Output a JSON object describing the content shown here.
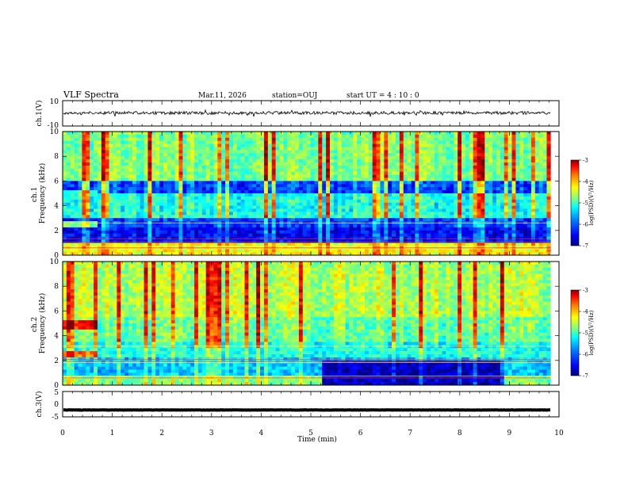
{
  "header": {
    "title": "VLF Spectra",
    "date": "Mar.11, 2026",
    "station": "station=OUJ",
    "start": "start UT =  4 : 10 : 0"
  },
  "colors": {
    "colormap": [
      "#00007f",
      "#0000ff",
      "#007fff",
      "#00ffff",
      "#7fff7f",
      "#ffff00",
      "#ff7f00",
      "#ff0000",
      "#7f0000"
    ]
  },
  "chart_data": [
    {
      "id": "ch1-waveform",
      "type": "line",
      "ylabel": "ch.1(V)",
      "ylim": [
        -10,
        10
      ],
      "yticks": [
        "10",
        "-10"
      ],
      "xlim": [
        0,
        10
      ],
      "x_extent": [
        0,
        9.83
      ],
      "baseline": 0.3,
      "amplitude": 1.2
    },
    {
      "id": "ch1-spectrogram",
      "type": "heatmap",
      "ylabel": "ch.1\nFrequency (kHz)",
      "ylim": [
        0,
        10
      ],
      "yticks": [
        "0",
        "2",
        "4",
        "6",
        "8",
        "10"
      ],
      "xlim": [
        0,
        10
      ],
      "x_extent": [
        0,
        9.83
      ],
      "colorbar": {
        "label": "log(PSD)(V²/Hz)",
        "range": [
          -7,
          -3
        ],
        "ticks": [
          "-3",
          "-4",
          "-5",
          "-6",
          "-7"
        ]
      },
      "bands_khz": [
        {
          "from": 0,
          "to": 0.9,
          "level": 0.62
        },
        {
          "from": 0.9,
          "to": 2.2,
          "level": 0.12
        },
        {
          "from": 2.2,
          "to": 2.9,
          "level": 0.18
        },
        {
          "from": 2.9,
          "to": 3.6,
          "level": 0.42
        },
        {
          "from": 3.6,
          "to": 5.0,
          "level": 0.4
        },
        {
          "from": 5.0,
          "to": 6.0,
          "level": 0.2
        },
        {
          "from": 6.0,
          "to": 10,
          "level": 0.5
        }
      ],
      "early_bright_bands_khz": [
        {
          "from": 2.3,
          "to": 2.8,
          "level": 0.5,
          "until_min": 0.7
        },
        {
          "from": 4.7,
          "to": 5.3,
          "level": 0.45,
          "until_min": 0.7
        }
      ]
    },
    {
      "id": "ch2-spectrogram",
      "type": "heatmap",
      "ylabel": "ch.2\nFrequency (kHz)",
      "ylim": [
        0,
        10
      ],
      "yticks": [
        "0",
        "2",
        "4",
        "6",
        "8",
        "10"
      ],
      "xlim": [
        0,
        10
      ],
      "x_extent": [
        0,
        9.83
      ],
      "colorbar": {
        "label": "log(PSD)(V²/Hz)",
        "range": [
          -7,
          -3
        ],
        "ticks": [
          "-3",
          "-4",
          "-5",
          "-6",
          "-7"
        ]
      },
      "bands_khz": [
        {
          "from": 0,
          "to": 0.8,
          "level": 0.5
        },
        {
          "from": 0.8,
          "to": 2.2,
          "level": 0.32
        },
        {
          "from": 2.2,
          "to": 3.5,
          "level": 0.4
        },
        {
          "from": 3.5,
          "to": 5.5,
          "level": 0.48
        },
        {
          "from": 5.5,
          "to": 10,
          "level": 0.55
        }
      ],
      "quiet_region": {
        "from_min": 5.2,
        "to_min": 8.9,
        "to_khz": 2.1,
        "level": 0.06
      },
      "early_bright_bands_khz": [
        {
          "from": 4.6,
          "to": 5.2,
          "level": 0.85,
          "until_min": 0.7
        },
        {
          "from": 2.3,
          "to": 2.8,
          "level": 0.75,
          "until_min": 0.7
        }
      ]
    },
    {
      "id": "ch3-waveform",
      "type": "line",
      "ylabel": "ch.3(V)",
      "ylim": [
        -5,
        5
      ],
      "yticks": [
        "5",
        "0",
        "-5"
      ],
      "xlim": [
        0,
        10
      ],
      "x_extent": [
        0,
        9.83
      ],
      "baseline": -2.3,
      "amplitude": 0.3
    }
  ],
  "xaxis": {
    "label": "Time (min)",
    "ticks": [
      "0",
      "1",
      "2",
      "3",
      "4",
      "5",
      "6",
      "7",
      "8",
      "9",
      "10"
    ]
  }
}
